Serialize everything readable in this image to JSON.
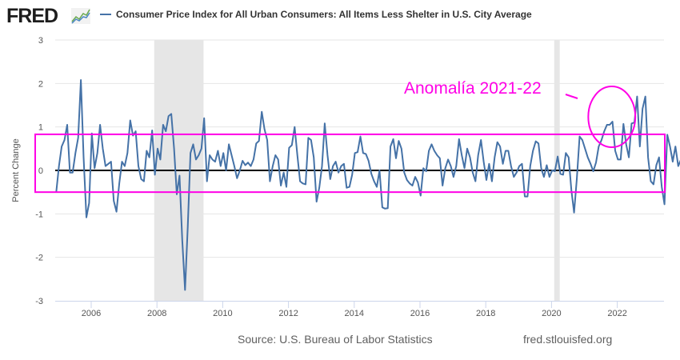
{
  "header": {
    "logo_text": "FRED",
    "logo_icon": "line-graph-icon",
    "legend_label": "Consumer Price Index for All Urban Consumers: All Items Less Shelter in U.S. City Average"
  },
  "footer": {
    "source": "Source: U.S. Bureau of Labor Statistics",
    "url": "fred.stlouisfed.org"
  },
  "colors": {
    "series": "#4572a7",
    "annotation": "#ff00e6",
    "recession": "#e6e6e6",
    "zero_line": "#000000",
    "grid": "#e6e6e6"
  },
  "chart_data": {
    "type": "line",
    "title": "Consumer Price Index for All Urban Consumers: All Items Less Shelter in U.S. City Average",
    "xlabel": "",
    "ylabel": "Percent Change",
    "ylim": [
      -3,
      3
    ],
    "yticks": [
      3,
      2,
      1,
      0,
      -1,
      -2,
      -3
    ],
    "xticks": [
      "2006",
      "2008",
      "2010",
      "2012",
      "2014",
      "2016",
      "2018",
      "2020",
      "2022"
    ],
    "x_start": "2005-01",
    "x_end": "2023-05",
    "frequency": "monthly",
    "grid": true,
    "legend": "top-left",
    "recessions": [
      {
        "start": "2007-12",
        "end": "2009-06"
      },
      {
        "start": "2020-02",
        "end": "2020-04"
      }
    ],
    "annotations": {
      "text": "Anomalía 2021-22",
      "band": {
        "upper": 0.83,
        "lower": -0.5
      },
      "highlight_period": {
        "start": "2021-03",
        "end": "2022-07"
      }
    },
    "series": [
      {
        "name": "CPI All Items Less Shelter (percent change)",
        "values": [
          -0.5,
          0.1,
          0.55,
          0.7,
          1.05,
          -0.05,
          -0.05,
          0.4,
          0.75,
          2.08,
          0.3,
          -1.08,
          -0.75,
          0.85,
          0.05,
          0.4,
          1.05,
          0.5,
          0.1,
          0.15,
          0.2,
          -0.7,
          -0.95,
          -0.3,
          0.2,
          0.1,
          0.4,
          1.15,
          0.8,
          0.9,
          0.1,
          -0.2,
          -0.25,
          0.45,
          0.3,
          0.92,
          -0.1,
          0.5,
          0.25,
          1.05,
          0.9,
          1.25,
          1.3,
          0.5,
          -0.55,
          -0.12,
          -1.6,
          -2.75,
          -1.3,
          0.4,
          0.6,
          0.25,
          0.35,
          0.5,
          1.2,
          -0.25,
          0.35,
          0.25,
          0.2,
          0.45,
          0.1,
          0.4,
          0.0,
          0.6,
          0.35,
          0.1,
          -0.18,
          0.0,
          0.22,
          0.12,
          0.18,
          0.1,
          0.25,
          0.62,
          0.68,
          1.35,
          0.95,
          0.7,
          -0.25,
          0.1,
          0.35,
          0.25,
          -0.35,
          -0.05,
          -0.38,
          0.52,
          0.58,
          1.0,
          0.35,
          -0.25,
          -0.3,
          -0.32,
          0.75,
          0.7,
          0.3,
          -0.72,
          -0.4,
          0.1,
          1.08,
          0.35,
          -0.2,
          0.1,
          0.2,
          -0.05,
          0.1,
          0.15,
          -0.4,
          -0.38,
          -0.1,
          0.4,
          0.42,
          0.78,
          0.4,
          0.38,
          0.22,
          -0.08,
          -0.25,
          -0.38,
          0.0,
          -0.85,
          -0.88,
          -0.87,
          0.55,
          0.72,
          0.28,
          0.68,
          0.5,
          -0.05,
          -0.22,
          -0.3,
          -0.35,
          -0.15,
          -0.28,
          -0.58,
          0.05,
          -0.02,
          0.45,
          0.6,
          0.45,
          0.35,
          0.28,
          -0.35,
          0.05,
          0.25,
          0.1,
          -0.15,
          0.1,
          0.72,
          0.35,
          0.05,
          0.5,
          0.3,
          -0.05,
          -0.25,
          0.35,
          0.7,
          0.2,
          -0.22,
          0.15,
          -0.25,
          0.3,
          0.65,
          0.55,
          0.15,
          0.45,
          0.45,
          0.1,
          -0.15,
          -0.05,
          0.1,
          0.15,
          -0.6,
          -0.6,
          0.1,
          0.45,
          0.67,
          0.62,
          0.05,
          -0.15,
          0.12,
          -0.15,
          0.0,
          -0.02,
          0.32,
          -0.08,
          -0.1,
          0.4,
          0.3,
          -0.45,
          -0.97,
          -0.2,
          0.78,
          0.7,
          0.5,
          0.3,
          0.15,
          -0.02,
          0.18,
          0.55,
          0.7,
          0.9,
          1.05,
          1.05,
          1.12,
          0.45,
          0.25,
          0.25,
          1.07,
          0.6,
          0.3,
          1.08,
          1.1,
          1.7,
          0.55,
          1.42,
          1.7,
          0.3,
          -0.25,
          -0.32,
          0.12,
          0.3,
          -0.38,
          -0.78,
          0.82,
          0.55,
          0.2,
          0.55,
          0.1,
          0.25
        ]
      }
    ]
  }
}
